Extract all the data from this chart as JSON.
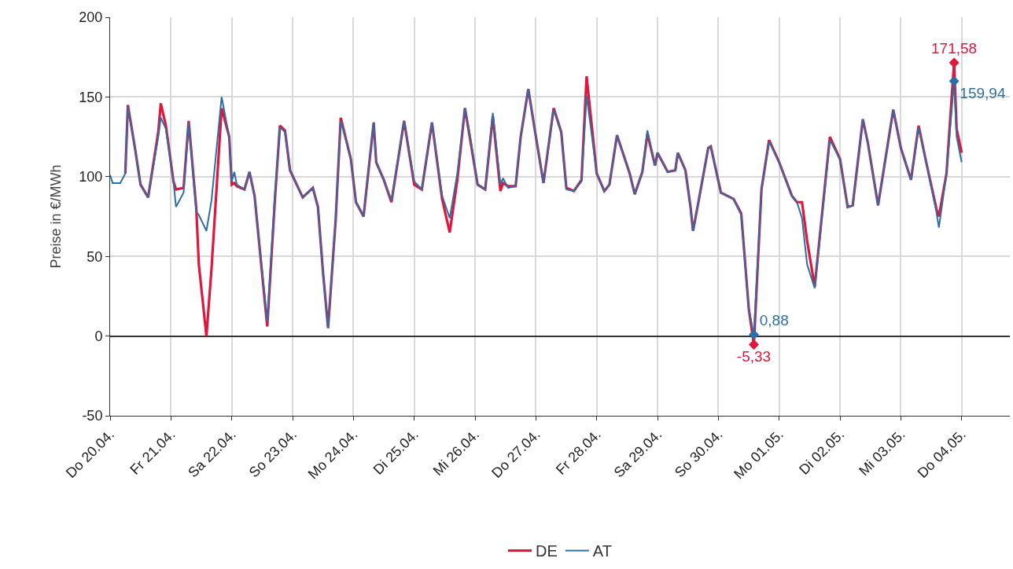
{
  "chart_data": {
    "type": "line",
    "ylabel": "Preise in €/MWh",
    "x": [
      "--04-20T00:00",
      "--04-20T01:00",
      "--04-20T04:00",
      "--04-20T06:00",
      "--04-20T07:00",
      "--04-20T10:00",
      "--04-20T12:00",
      "--04-20T15:00",
      "--04-20T19:00",
      "--04-20T20:00",
      "--04-20T22:00",
      "--04-21T01:00",
      "--04-21T02:00",
      "--04-21T05:00",
      "--04-21T07:00",
      "--04-21T10:00",
      "--04-21T11:00",
      "--04-21T14:00",
      "--04-21T16:00",
      "--04-21T20:00",
      "--04-21T23:00",
      "--04-22T00:00",
      "--04-22T01:00",
      "--04-22T02:00",
      "--04-22T05:00",
      "--04-22T07:00",
      "--04-22T09:00",
      "--04-22T14:00",
      "--04-22T17:00",
      "--04-22T19:00",
      "--04-22T21:00",
      "--04-22T23:00",
      "--04-23T04:00",
      "--04-23T08:00",
      "--04-23T10:00",
      "--04-23T12:00",
      "--04-23T14:00",
      "--04-23T17:00",
      "--04-23T19:00",
      "--04-23T23:00",
      "--04-24T01:00",
      "--04-24T04:00",
      "--04-24T08:00",
      "--04-24T09:00",
      "--04-24T12:00",
      "--04-24T15:00",
      "--04-24T20:00",
      "--04-25T00:00",
      "--04-25T03:00",
      "--04-25T07:00",
      "--04-25T11:00",
      "--04-25T14:00",
      "--04-25T17:00",
      "--04-25T20:00",
      "--04-25T22:00",
      "--04-26T01:00",
      "--04-26T04:00",
      "--04-26T07:00",
      "--04-26T10:00",
      "--04-26T11:00",
      "--04-26T13:00",
      "--04-26T16:00",
      "--04-26T18:00",
      "--04-26T21:00",
      "--04-27T00:00",
      "--04-27T03:00",
      "--04-27T07:00",
      "--04-27T10:00",
      "--04-27T12:00",
      "--04-27T15:00",
      "--04-27T18:00",
      "--04-27T20:00",
      "--04-28T00:00",
      "--04-28T03:00",
      "--04-28T05:00",
      "--04-28T08:00",
      "--04-28T13:00",
      "--04-28T15:00",
      "--04-28T18:00",
      "--04-28T20:00",
      "--04-28T23:00",
      "--04-29T00:00",
      "--04-29T04:00",
      "--04-29T07:00",
      "--04-29T08:00",
      "--04-29T11:00",
      "--04-29T13:00",
      "--04-29T14:00",
      "--04-29T16:00",
      "--04-29T20:00",
      "--04-29T21:00",
      "--04-30T01:00",
      "--04-30T06:00",
      "--04-30T09:00",
      "--04-30T12:00",
      "--04-30T14:00",
      "--04-30T17:00",
      "--04-30T20:00",
      "--05-01T00:00",
      "--05-01T05:00",
      "--05-01T07:00",
      "--05-01T09:00",
      "--05-01T11:00",
      "--05-01T14:00",
      "--05-01T20:00",
      "--05-02T00:00",
      "--05-02T03:00",
      "--05-02T05:00",
      "--05-02T09:00",
      "--05-02T11:00",
      "--05-02T15:00",
      "--05-02T21:00",
      "--05-03T00:00",
      "--05-03T04:00",
      "--05-03T07:00",
      "--05-03T10:00",
      "--05-03T14:00",
      "--05-03T15:00",
      "--05-03T18:00",
      "--05-03T21:00",
      "--05-03T22:00",
      "--05-04T00:00"
    ],
    "series": [
      {
        "name": "DE",
        "color": "#e0163c",
        "values": [
          null,
          null,
          null,
          102,
          145,
          116,
          95,
          87,
          128,
          146,
          132,
          97,
          92,
          93,
          135,
          80,
          45,
          0,
          42,
          143,
          125,
          95,
          96,
          94,
          92,
          103,
          88,
          6,
          85,
          132,
          129,
          104,
          87,
          93,
          81,
          40,
          5,
          73,
          137,
          111,
          84,
          75,
          134,
          109,
          98,
          84,
          135,
          95,
          92,
          134,
          86,
          65,
          98,
          143,
          124,
          95,
          92,
          138,
          91,
          96,
          94,
          94,
          125,
          155,
          125,
          96,
          143,
          128,
          93,
          91,
          98,
          163,
          102,
          91,
          95,
          126,
          102,
          89,
          103,
          127,
          107,
          115,
          103,
          104,
          115,
          104,
          81,
          66,
          83,
          118,
          119,
          90,
          86,
          77,
          17,
          -5.33,
          92,
          123,
          109,
          88,
          84,
          84,
          60,
          31,
          125,
          111,
          81,
          82,
          136,
          121,
          82,
          142,
          118,
          98,
          132,
          109,
          80,
          75,
          102,
          171.58,
          130,
          115
        ],
        "value_labels": [
          null,
          null,
          null,
          null,
          null,
          null,
          null,
          null,
          null,
          null,
          null,
          null,
          null,
          null,
          null,
          null,
          null,
          null,
          null,
          null,
          null,
          null,
          null,
          null,
          null,
          null,
          null,
          null,
          null,
          null,
          null,
          null,
          null,
          null,
          null,
          null,
          null,
          null,
          null,
          null,
          null,
          null,
          null,
          null,
          null,
          null,
          null,
          null,
          null,
          null,
          null,
          null,
          null,
          null,
          null,
          null,
          null,
          null,
          null,
          null,
          null,
          null,
          null,
          null,
          null,
          null,
          null,
          null,
          null,
          null,
          null,
          null,
          null,
          null,
          null,
          null,
          null,
          null,
          null,
          null,
          null,
          null,
          null,
          null,
          null,
          null,
          null,
          null,
          null,
          null,
          null,
          null,
          null,
          null,
          null,
          "-5,33",
          null,
          null,
          null,
          null,
          null,
          null,
          null,
          null,
          null,
          null,
          null,
          null,
          null,
          null,
          null,
          null,
          null,
          null,
          null,
          null,
          null,
          null,
          null,
          "171,58",
          null,
          null
        ]
      },
      {
        "name": "AT",
        "color": "#2e6ea6",
        "values": [
          101,
          96,
          96,
          102,
          144,
          116,
          95,
          87,
          125,
          137,
          130,
          97,
          81,
          90,
          134,
          78,
          76,
          66,
          85,
          150,
          125,
          97,
          103,
          95,
          92,
          103,
          88,
          9,
          88,
          131,
          128,
          104,
          87,
          93,
          81,
          40,
          5,
          73,
          135,
          111,
          84,
          75,
          134,
          109,
          98,
          85,
          135,
          97,
          92,
          134,
          88,
          74,
          102,
          143,
          126,
          95,
          92,
          140,
          95,
          99,
          93,
          94,
          125,
          155,
          125,
          96,
          142,
          128,
          92,
          91,
          97,
          151,
          102,
          91,
          95,
          126,
          102,
          89,
          103,
          129,
          107,
          115,
          103,
          104,
          115,
          104,
          81,
          66,
          83,
          118,
          119,
          90,
          86,
          76,
          17,
          0.88,
          92,
          122,
          109,
          88,
          84,
          74,
          45,
          30,
          123,
          111,
          81,
          82,
          136,
          121,
          82,
          142,
          118,
          98,
          131,
          109,
          78,
          68,
          102,
          159.94,
          125,
          109
        ],
        "value_labels": [
          null,
          null,
          null,
          null,
          null,
          null,
          null,
          null,
          null,
          null,
          null,
          null,
          null,
          null,
          null,
          null,
          null,
          null,
          null,
          null,
          null,
          null,
          null,
          null,
          null,
          null,
          null,
          null,
          null,
          null,
          null,
          null,
          null,
          null,
          null,
          null,
          null,
          null,
          null,
          null,
          null,
          null,
          null,
          null,
          null,
          null,
          null,
          null,
          null,
          null,
          null,
          null,
          null,
          null,
          null,
          null,
          null,
          null,
          null,
          null,
          null,
          null,
          null,
          null,
          null,
          null,
          null,
          null,
          null,
          null,
          null,
          null,
          null,
          null,
          null,
          null,
          null,
          null,
          null,
          null,
          null,
          null,
          null,
          null,
          null,
          null,
          null,
          null,
          null,
          null,
          null,
          null,
          null,
          null,
          null,
          "0,88",
          null,
          null,
          null,
          null,
          null,
          null,
          null,
          null,
          null,
          null,
          null,
          null,
          null,
          null,
          null,
          null,
          null,
          null,
          null,
          null,
          null,
          null,
          null,
          "159,94",
          null,
          null
        ]
      }
    ],
    "xlim": [
      "--04-20T00:00",
      "--05-04T19:00"
    ],
    "xticks": [
      {
        "value": "--04-20",
        "label": "Do 20.04."
      },
      {
        "value": "--04-21",
        "label": "Fr 21.04."
      },
      {
        "value": "--04-22",
        "label": "Sa 22.04."
      },
      {
        "value": "--04-23",
        "label": "So 23.04."
      },
      {
        "value": "--04-24",
        "label": "Mo 24.04."
      },
      {
        "value": "--04-25",
        "label": "Di 25.04."
      },
      {
        "value": "--04-26",
        "label": "Mi 26.04."
      },
      {
        "value": "--04-27",
        "label": "Do 27.04."
      },
      {
        "value": "--04-28",
        "label": "Fr 28.04."
      },
      {
        "value": "--04-29",
        "label": "Sa 29.04."
      },
      {
        "value": "--04-30",
        "label": "So 30.04."
      },
      {
        "value": "--05-01",
        "label": "Mo 01.05."
      },
      {
        "value": "--05-02",
        "label": "Di 02.05."
      },
      {
        "value": "--05-03",
        "label": "Mi 03.05."
      },
      {
        "value": "--05-04",
        "label": "Do 04.05."
      }
    ],
    "ylim": [
      -50,
      200
    ],
    "yticks": [
      -50,
      0,
      50,
      100,
      150,
      200
    ],
    "grid": true,
    "legend": "bottom",
    "line_style": "solid"
  }
}
